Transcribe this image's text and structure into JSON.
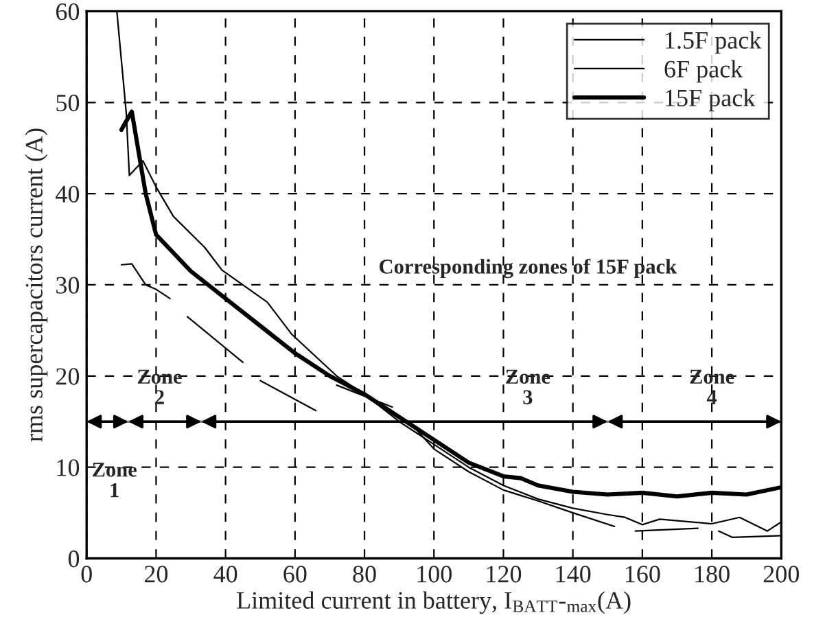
{
  "chart_data": {
    "type": "line",
    "xlabel": "Limited current in battery, I$_{BATT}$-$_{max}$(A)",
    "ylabel": "rms supercapacitors current (A)",
    "xlim": [
      0,
      200
    ],
    "xticks": [
      0,
      20,
      40,
      60,
      80,
      100,
      120,
      140,
      160,
      180,
      200
    ],
    "ylim": [
      0,
      60
    ],
    "yticks": [
      0,
      10,
      20,
      30,
      40,
      50,
      60
    ],
    "grid": true,
    "legend": "top right",
    "line_style": "solid",
    "marker": "none",
    "series": [
      {
        "name": "1.5F pack",
        "color": "#000000",
        "x": [
          10,
          13,
          17,
          20,
          24,
          26,
          29,
          45,
          47,
          50,
          66,
          69,
          72,
          88,
          91,
          94,
          100,
          110,
          120,
          130,
          140,
          152,
          155,
          158,
          176,
          179,
          182,
          186,
          200
        ],
        "values": [
          32.2,
          32.3,
          30,
          29.5,
          28.5,
          null,
          26.5,
          21.5,
          null,
          19.5,
          16.2,
          null,
          19,
          16.6,
          null,
          14.5,
          12,
          9.5,
          7.5,
          6.3,
          5,
          3.5,
          null,
          3,
          3.3,
          null,
          3,
          2.3,
          2.5
        ]
      },
      {
        "name": "6F pack",
        "color": "#000000",
        "x": [
          8.7,
          11.4,
          12.3,
          16.2,
          20.2,
          25,
          34,
          39,
          52,
          59,
          72,
          80,
          90,
          100,
          110,
          120,
          130,
          140,
          150,
          155,
          160,
          165,
          180,
          188,
          196,
          200
        ],
        "values": [
          60,
          48.9,
          42,
          43.6,
          40.6,
          37.5,
          34.1,
          31.6,
          28.1,
          24.6,
          20,
          18,
          15,
          12.5,
          10,
          8,
          6.5,
          5.5,
          4.8,
          4.5,
          3.7,
          4.3,
          3.8,
          4.5,
          3,
          4
        ]
      },
      {
        "name": "15F pack",
        "color": "#000000",
        "x": [
          10,
          13,
          17,
          20,
          30,
          40,
          50,
          60,
          70,
          80,
          90,
          100,
          110,
          120,
          125,
          130,
          140,
          150,
          160,
          170,
          180,
          190,
          200
        ],
        "values": [
          47,
          49,
          40,
          35.5,
          31.5,
          28.5,
          25.5,
          22.5,
          20,
          18,
          15.5,
          13,
          10.5,
          9,
          8.8,
          8,
          7.3,
          7,
          7.2,
          6.8,
          7.2,
          7,
          7.8
        ]
      }
    ],
    "ref_lines": [
      {
        "axis": "y",
        "value": 15,
        "color": "#808080"
      }
    ],
    "annotations": [
      "Corresponding zones of 15F pack",
      "Zone\n1",
      "Zone\n2",
      "Zone\n3",
      "Zone\n4"
    ]
  }
}
